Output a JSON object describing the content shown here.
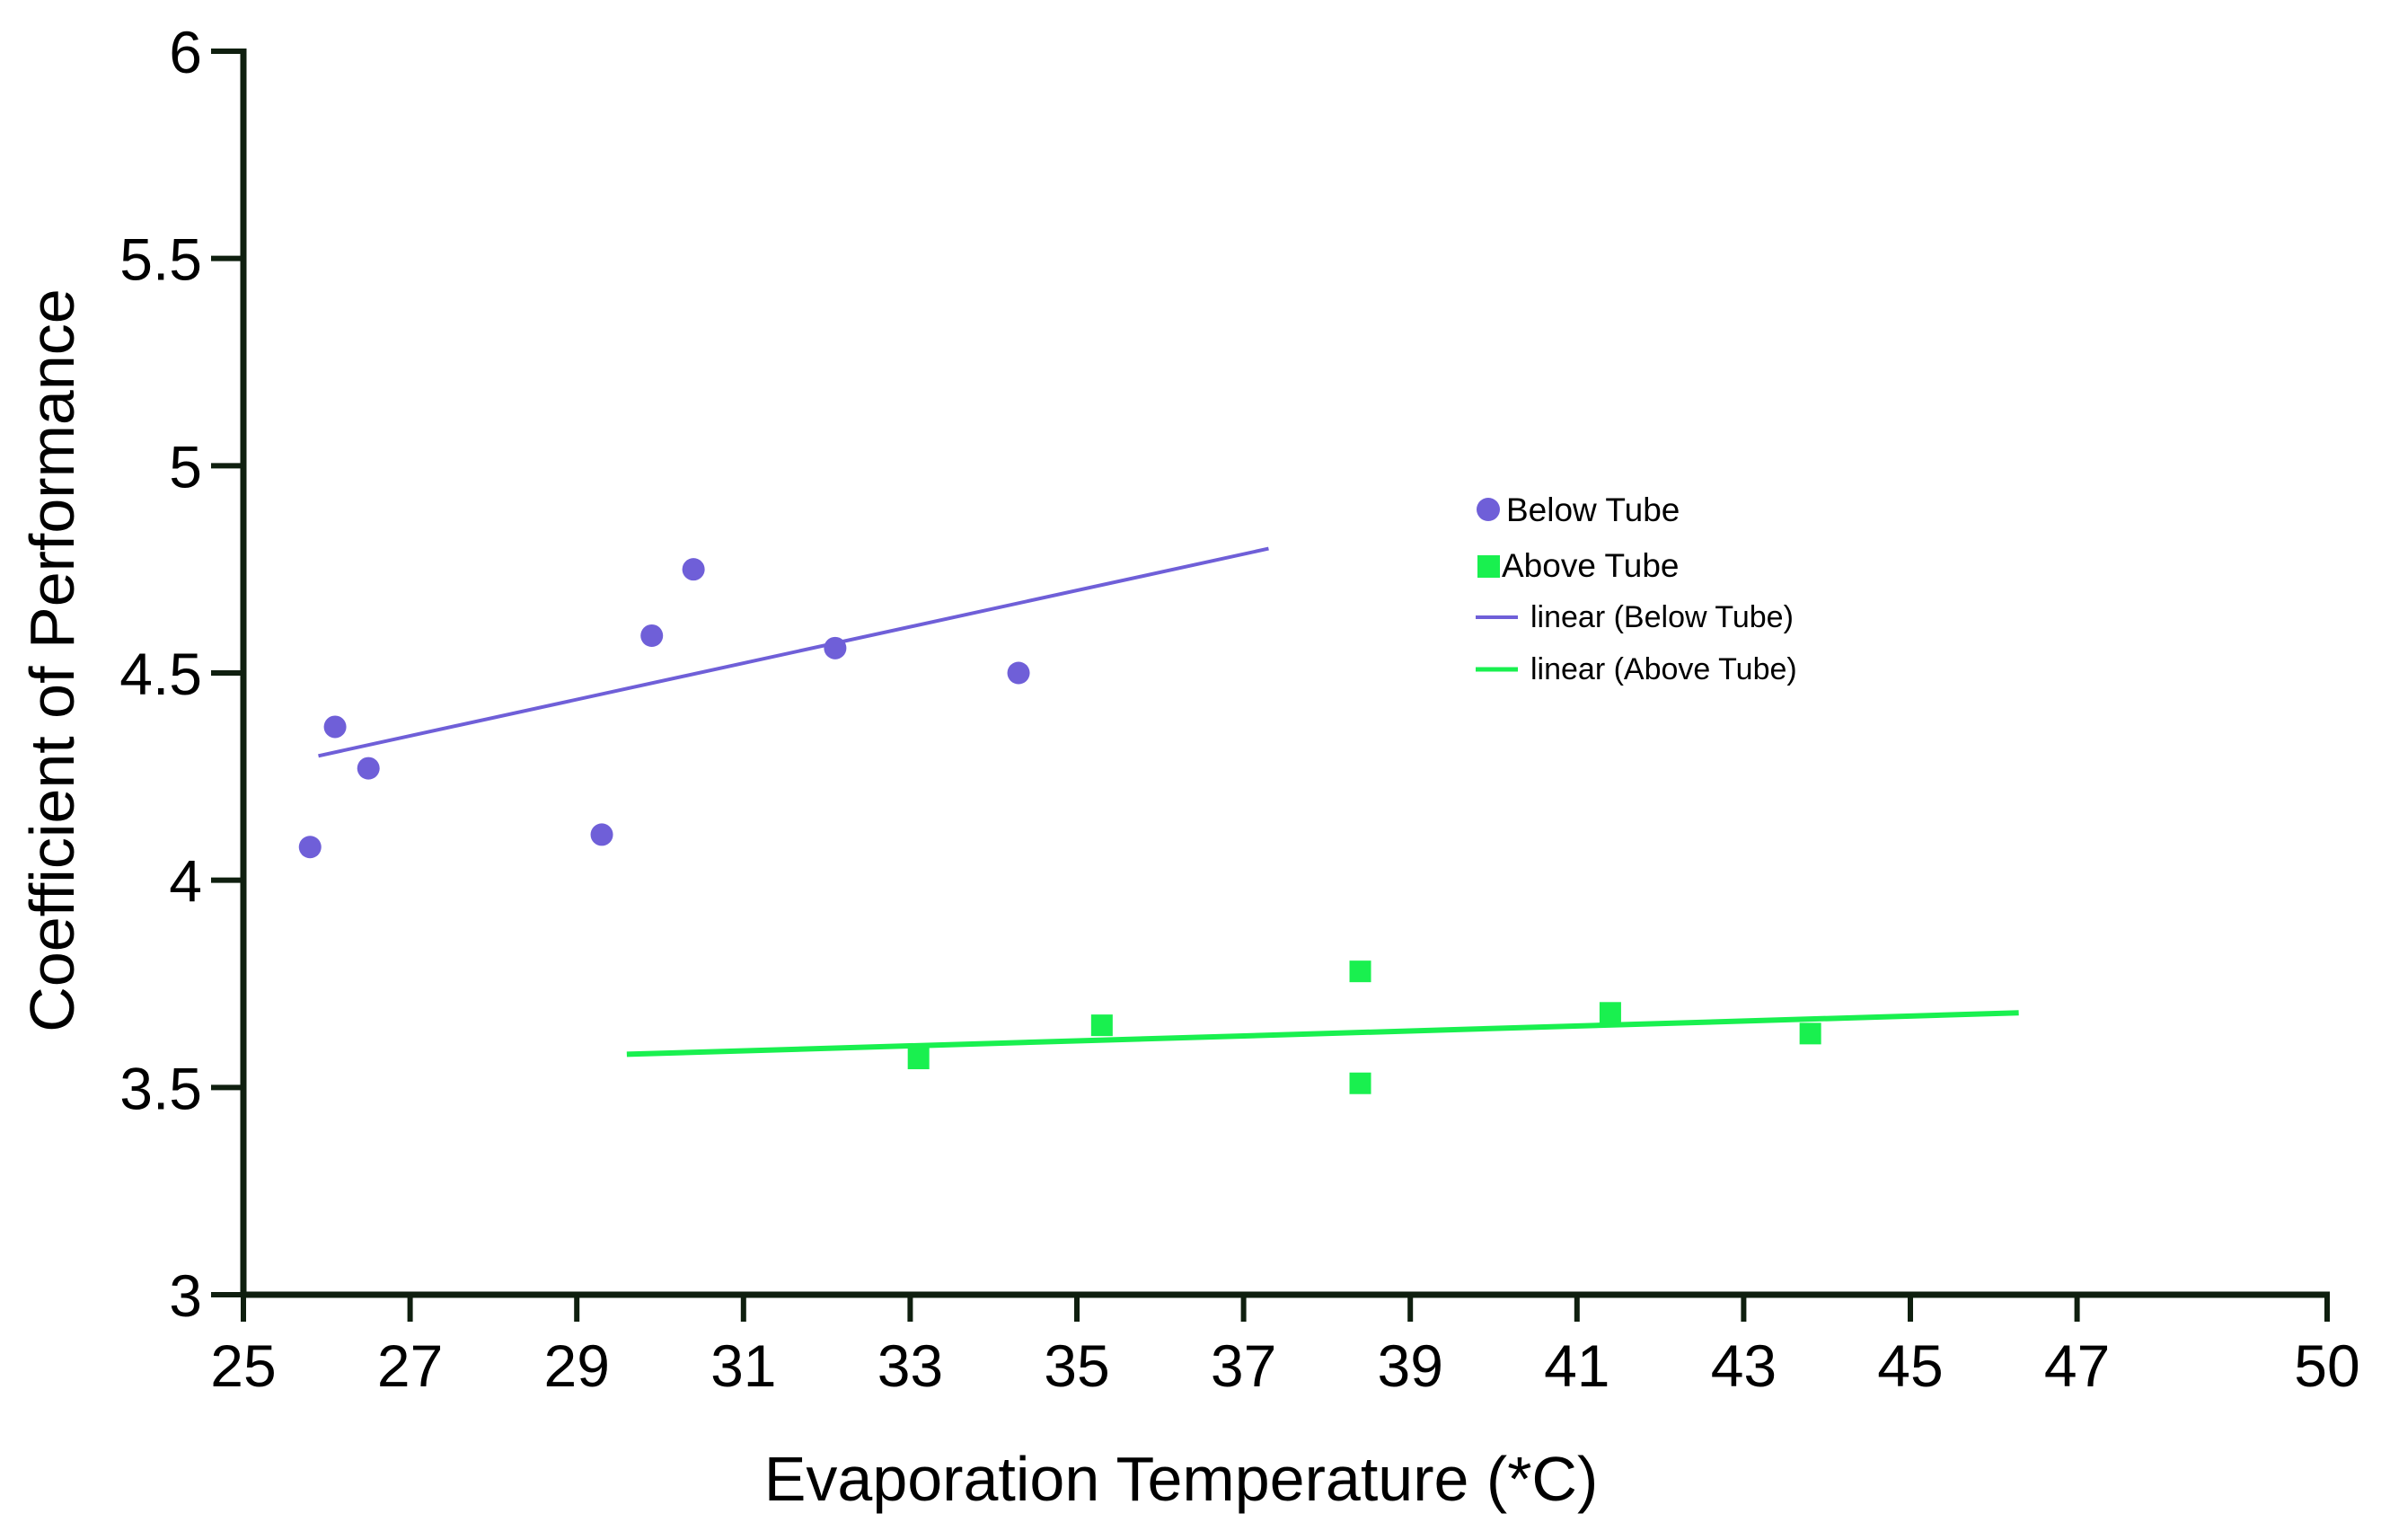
{
  "chart_data": {
    "type": "scatter",
    "title": "",
    "xlabel": "Evaporation Temperature (*C)",
    "ylabel": "Coefficient of Performance",
    "xlim": [
      25,
      50
    ],
    "ylim": [
      3,
      6
    ],
    "x_ticks": [
      {
        "value": 25,
        "label": "25"
      },
      {
        "value": 27,
        "label": "27"
      },
      {
        "value": 29,
        "label": "29"
      },
      {
        "value": 31,
        "label": "31"
      },
      {
        "value": 33,
        "label": "33"
      },
      {
        "value": 35,
        "label": "35"
      },
      {
        "value": 37,
        "label": "37"
      },
      {
        "value": 39,
        "label": "39"
      },
      {
        "value": 41,
        "label": "41"
      },
      {
        "value": 43,
        "label": "43"
      },
      {
        "value": 45,
        "label": "45"
      },
      {
        "value": 47,
        "label": "47"
      },
      {
        "value": 50,
        "label": "50"
      }
    ],
    "y_ticks": [
      {
        "value": 3,
        "label": "3"
      },
      {
        "value": 3.5,
        "label": "3.5"
      },
      {
        "value": 4,
        "label": "4"
      },
      {
        "value": 4.5,
        "label": "4.5"
      },
      {
        "value": 5,
        "label": "5"
      },
      {
        "value": 5.5,
        "label": "5.5"
      },
      {
        "value": 6,
        "label": "6"
      }
    ],
    "series": [
      {
        "name": "Below Tube",
        "marker": "circle",
        "color": "#6f5fd8",
        "points": [
          {
            "x": 25.8,
            "y": 4.08
          },
          {
            "x": 26.1,
            "y": 4.37
          },
          {
            "x": 26.5,
            "y": 4.27
          },
          {
            "x": 29.3,
            "y": 4.11
          },
          {
            "x": 29.9,
            "y": 4.59
          },
          {
            "x": 30.4,
            "y": 4.75
          },
          {
            "x": 32.1,
            "y": 4.56
          },
          {
            "x": 34.3,
            "y": 4.5
          }
        ]
      },
      {
        "name": "Above Tube",
        "marker": "square",
        "color": "#19f04f",
        "points": [
          {
            "x": 33.1,
            "y": 3.57
          },
          {
            "x": 35.3,
            "y": 3.65
          },
          {
            "x": 38.4,
            "y": 3.78
          },
          {
            "x": 38.4,
            "y": 3.51
          },
          {
            "x": 41.4,
            "y": 3.68
          },
          {
            "x": 43.8,
            "y": 3.63
          }
        ]
      }
    ],
    "trendlines": [
      {
        "name": "linear (Below Tube)",
        "color": "#6f5fd8",
        "x": [
          25.9,
          37.3
        ],
        "y": [
          4.3,
          4.8
        ]
      },
      {
        "name": "linear (Above Tube)",
        "color": "#19f04f",
        "x": [
          29.6,
          46.3
        ],
        "y": [
          3.58,
          3.68
        ]
      }
    ],
    "legend": {
      "position": "right-center",
      "entries": [
        {
          "label": "Below Tube",
          "symbol": "circle",
          "color": "#6f5fd8"
        },
        {
          "label": "Above Tube",
          "symbol": "square",
          "color": "#19f04f"
        },
        {
          "label": "linear (Below Tube)",
          "symbol": "line",
          "color": "#6f5fd8"
        },
        {
          "label": "linear (Above Tube)",
          "symbol": "line",
          "color": "#19f04f"
        }
      ]
    }
  }
}
